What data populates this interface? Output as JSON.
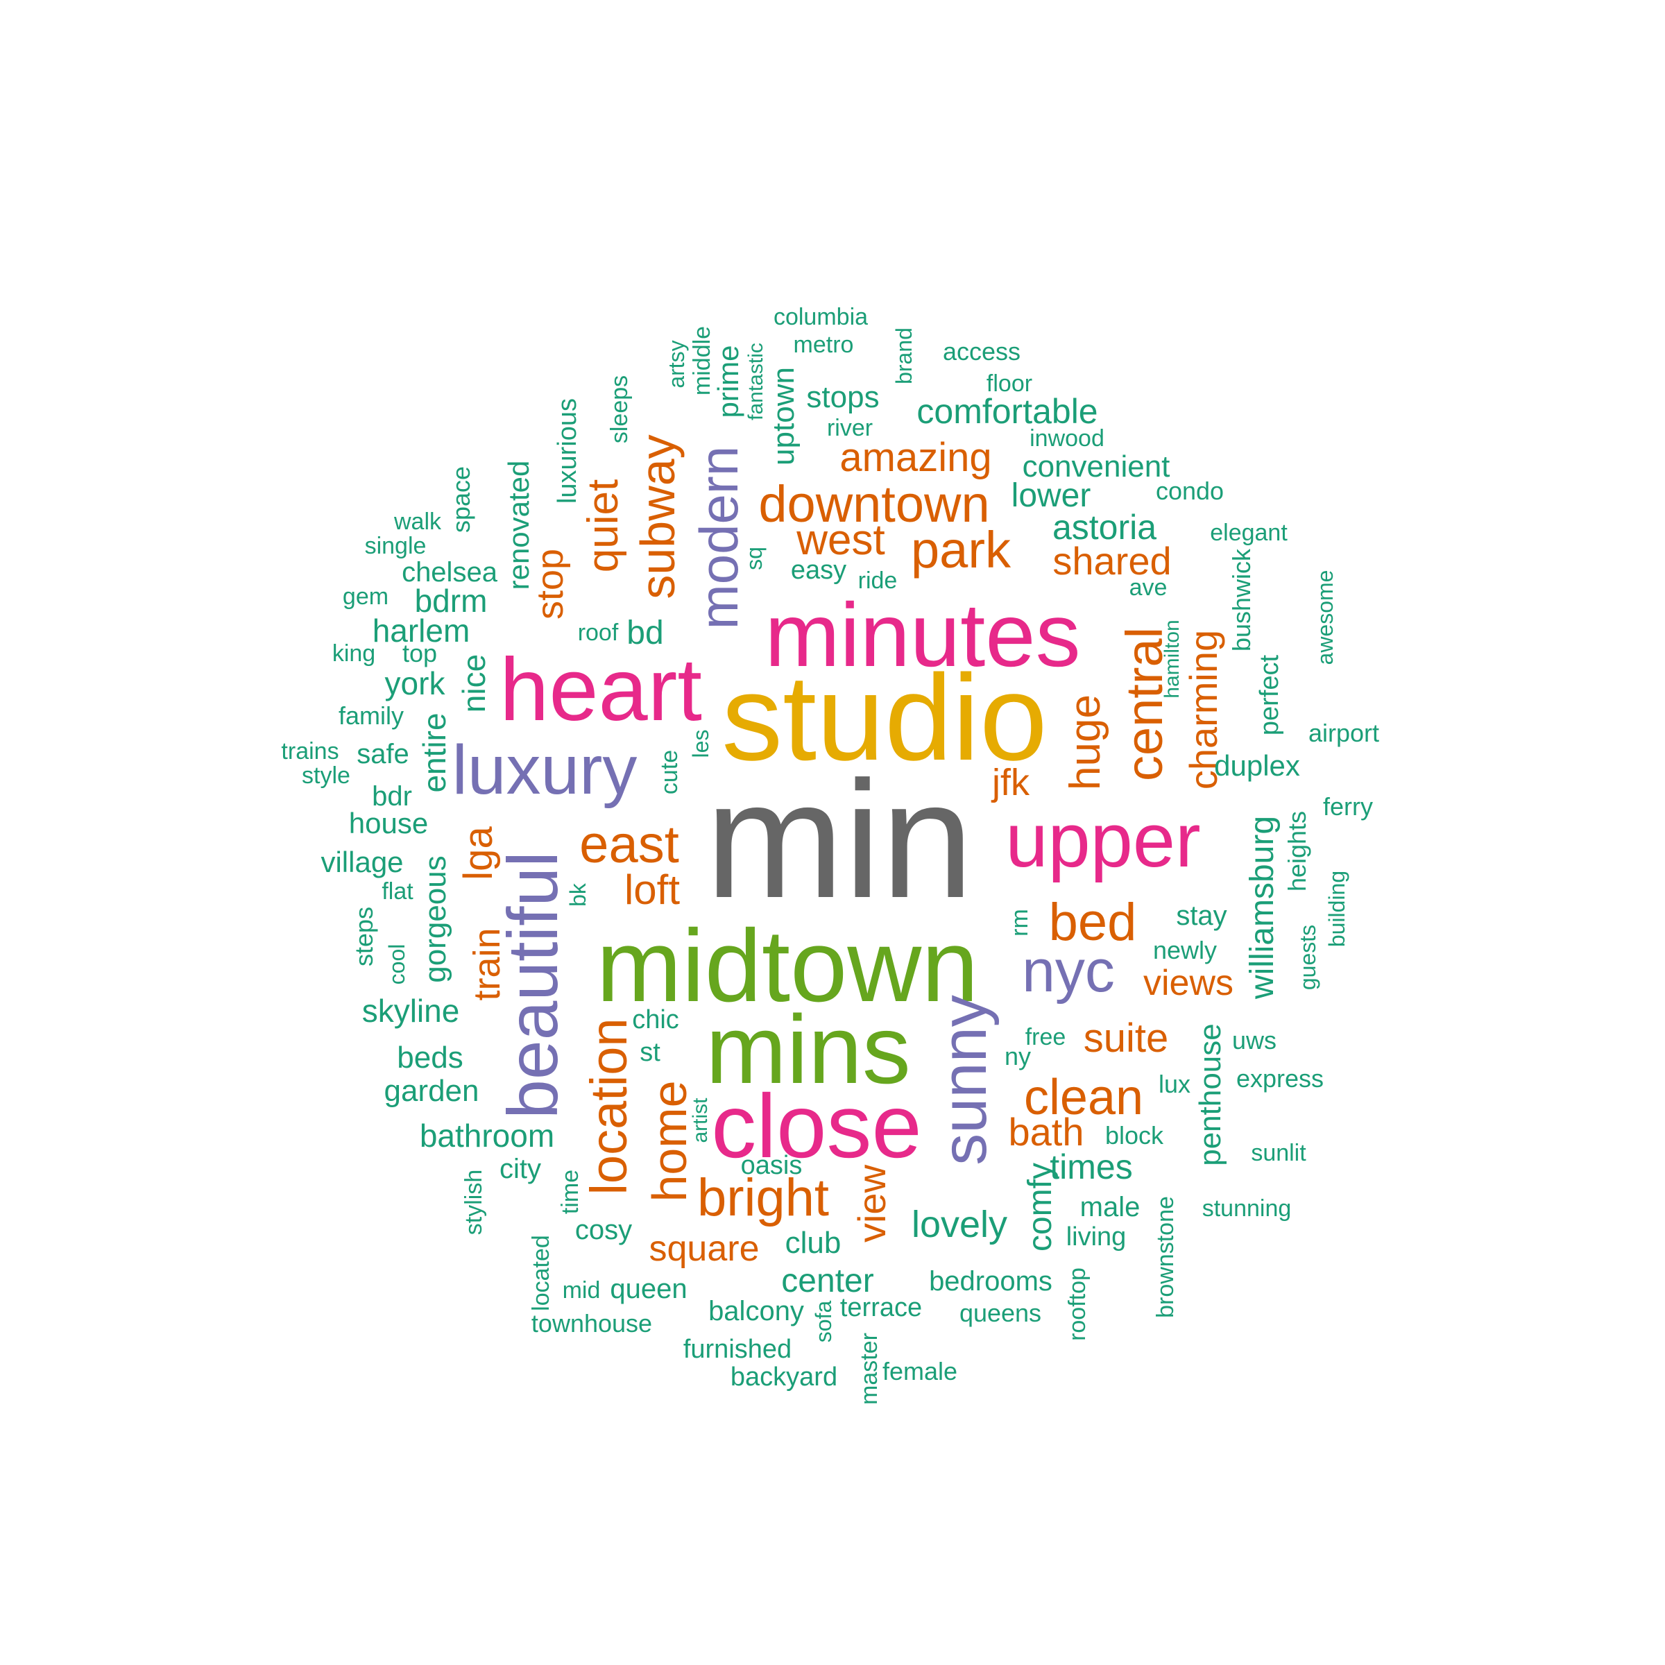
{
  "palette": [
    "#1b9e77",
    "#d95f02",
    "#7570b3",
    "#e7298a",
    "#66a61e",
    "#e6ab02",
    "#666666"
  ],
  "words": [
    {
      "text": "min",
      "color": 6
    },
    {
      "text": "studio",
      "color": 5
    },
    {
      "text": "midtown",
      "color": 4
    },
    {
      "text": "mins",
      "color": 4
    },
    {
      "text": "minutes",
      "color": 3
    },
    {
      "text": "heart",
      "color": 3
    },
    {
      "text": "close",
      "color": 3
    },
    {
      "text": "upper",
      "color": 3
    },
    {
      "text": "luxury",
      "color": 2
    },
    {
      "text": "beautiful",
      "color": 2
    },
    {
      "text": "sunny",
      "color": 2
    },
    {
      "text": "nyc",
      "color": 2
    },
    {
      "text": "modern",
      "color": 2
    },
    {
      "text": "downtown",
      "color": 1
    },
    {
      "text": "park",
      "color": 1
    },
    {
      "text": "east",
      "color": 1
    },
    {
      "text": "bed",
      "color": 1
    },
    {
      "text": "clean",
      "color": 1
    },
    {
      "text": "bright",
      "color": 1
    },
    {
      "text": "location",
      "color": 1
    },
    {
      "text": "home",
      "color": 1
    },
    {
      "text": "central",
      "color": 1
    },
    {
      "text": "subway",
      "color": 1
    },
    {
      "text": "quiet",
      "color": 1
    },
    {
      "text": "west",
      "color": 1
    },
    {
      "text": "amazing",
      "color": 1
    },
    {
      "text": "shared",
      "color": 1
    },
    {
      "text": "charming",
      "color": 1
    },
    {
      "text": "huge",
      "color": 1
    },
    {
      "text": "loft",
      "color": 1
    },
    {
      "text": "lga",
      "color": 1
    },
    {
      "text": "suite",
      "color": 1
    },
    {
      "text": "views",
      "color": 1
    },
    {
      "text": "bath",
      "color": 1
    },
    {
      "text": "square",
      "color": 1
    },
    {
      "text": "view",
      "color": 1
    },
    {
      "text": "train",
      "color": 1
    },
    {
      "text": "stop",
      "color": 1
    },
    {
      "text": "jfk",
      "color": 1
    },
    {
      "text": "comfortable",
      "color": 0
    },
    {
      "text": "convenient",
      "color": 0
    },
    {
      "text": "lower",
      "color": 0
    },
    {
      "text": "astoria",
      "color": 0
    },
    {
      "text": "stops",
      "color": 0
    },
    {
      "text": "uptown",
      "color": 0
    },
    {
      "text": "prime",
      "color": 0
    },
    {
      "text": "lovely",
      "color": 0
    },
    {
      "text": "center",
      "color": 0
    },
    {
      "text": "williamsburg",
      "color": 0
    },
    {
      "text": "duplex",
      "color": 0
    },
    {
      "text": "times",
      "color": 0
    },
    {
      "text": "comfy",
      "color": 0
    },
    {
      "text": "penthouse",
      "color": 0
    },
    {
      "text": "bathroom",
      "color": 0
    },
    {
      "text": "skyline",
      "color": 0
    },
    {
      "text": "gorgeous",
      "color": 0
    },
    {
      "text": "harlem",
      "color": 0
    },
    {
      "text": "bdrm",
      "color": 0
    },
    {
      "text": "york",
      "color": 0
    },
    {
      "text": "entire",
      "color": 0
    },
    {
      "text": "nice",
      "color": 0
    },
    {
      "text": "bd",
      "color": 0
    },
    {
      "text": "renovated",
      "color": 0
    },
    {
      "text": "luxurious",
      "color": 0
    },
    {
      "text": "heights",
      "color": 0
    },
    {
      "text": "perfect",
      "color": 0
    },
    {
      "text": "bushwick",
      "color": 0
    },
    {
      "text": "stay",
      "color": 0
    },
    {
      "text": "club",
      "color": 0
    },
    {
      "text": "bedrooms",
      "color": 0
    },
    {
      "text": "house",
      "color": 0
    },
    {
      "text": "village",
      "color": 0
    },
    {
      "text": "beds",
      "color": 0
    },
    {
      "text": "garden",
      "color": 0
    },
    {
      "text": "balcony",
      "color": 0
    },
    {
      "text": "queen",
      "color": 0
    },
    {
      "text": "chelsea",
      "color": 0
    },
    {
      "text": "bdr",
      "color": 0
    },
    {
      "text": "safe",
      "color": 0
    },
    {
      "text": "easy",
      "color": 0
    },
    {
      "text": "cosy",
      "color": 0
    },
    {
      "text": "city",
      "color": 0
    },
    {
      "text": "male",
      "color": 0
    },
    {
      "text": "living",
      "color": 0
    },
    {
      "text": "terrace",
      "color": 0
    },
    {
      "text": "furnished",
      "color": 0
    },
    {
      "text": "backyard",
      "color": 0
    },
    {
      "text": "female",
      "color": 0
    },
    {
      "text": "townhouse",
      "color": 0
    },
    {
      "text": "queens",
      "color": 0
    },
    {
      "text": "stunning",
      "color": 0
    },
    {
      "text": "express",
      "color": 0
    },
    {
      "text": "sunlit",
      "color": 0
    },
    {
      "text": "uws",
      "color": 0
    },
    {
      "text": "newly",
      "color": 0
    },
    {
      "text": "block",
      "color": 0
    },
    {
      "text": "lux",
      "color": 0
    },
    {
      "text": "oasis",
      "color": 0
    },
    {
      "text": "chic",
      "color": 0
    },
    {
      "text": "st",
      "color": 0
    },
    {
      "text": "free",
      "color": 0
    },
    {
      "text": "ny",
      "color": 0
    },
    {
      "text": "flat",
      "color": 0
    },
    {
      "text": "family",
      "color": 0
    },
    {
      "text": "trains",
      "color": 0
    },
    {
      "text": "style",
      "color": 0
    },
    {
      "text": "king",
      "color": 0
    },
    {
      "text": "top",
      "color": 0
    },
    {
      "text": "gem",
      "color": 0
    },
    {
      "text": "single",
      "color": 0
    },
    {
      "text": "walk",
      "color": 0
    },
    {
      "text": "roof",
      "color": 0
    },
    {
      "text": "ride",
      "color": 0
    },
    {
      "text": "ave",
      "color": 0
    },
    {
      "text": "condo",
      "color": 0
    },
    {
      "text": "elegant",
      "color": 0
    },
    {
      "text": "inwood",
      "color": 0
    },
    {
      "text": "floor",
      "color": 0
    },
    {
      "text": "access",
      "color": 0
    },
    {
      "text": "river",
      "color": 0
    },
    {
      "text": "metro",
      "color": 0
    },
    {
      "text": "columbia",
      "color": 0
    },
    {
      "text": "airport",
      "color": 0
    },
    {
      "text": "ferry",
      "color": 0
    },
    {
      "text": "mid",
      "color": 0
    },
    {
      "text": "space",
      "color": 0
    },
    {
      "text": "sleeps",
      "color": 0
    },
    {
      "text": "artsy",
      "color": 0
    },
    {
      "text": "middle",
      "color": 0
    },
    {
      "text": "fantastic",
      "color": 0
    },
    {
      "text": "brand",
      "color": 0
    },
    {
      "text": "sq",
      "color": 0
    },
    {
      "text": "hamilton",
      "color": 0
    },
    {
      "text": "awesome",
      "color": 0
    },
    {
      "text": "les",
      "color": 0
    },
    {
      "text": "cute",
      "color": 0
    },
    {
      "text": "bk",
      "color": 0
    },
    {
      "text": "rm",
      "color": 0
    },
    {
      "text": "steps",
      "color": 0
    },
    {
      "text": "cool",
      "color": 0
    },
    {
      "text": "guests",
      "color": 0
    },
    {
      "text": "building",
      "color": 0
    },
    {
      "text": "artist",
      "color": 0
    },
    {
      "text": "stylish",
      "color": 0
    },
    {
      "text": "time",
      "color": 0
    },
    {
      "text": "located",
      "color": 0
    },
    {
      "text": "sofa",
      "color": 0
    },
    {
      "text": "master",
      "color": 0
    },
    {
      "text": "rooftop",
      "color": 0
    },
    {
      "text": "brownstone",
      "color": 0
    }
  ]
}
